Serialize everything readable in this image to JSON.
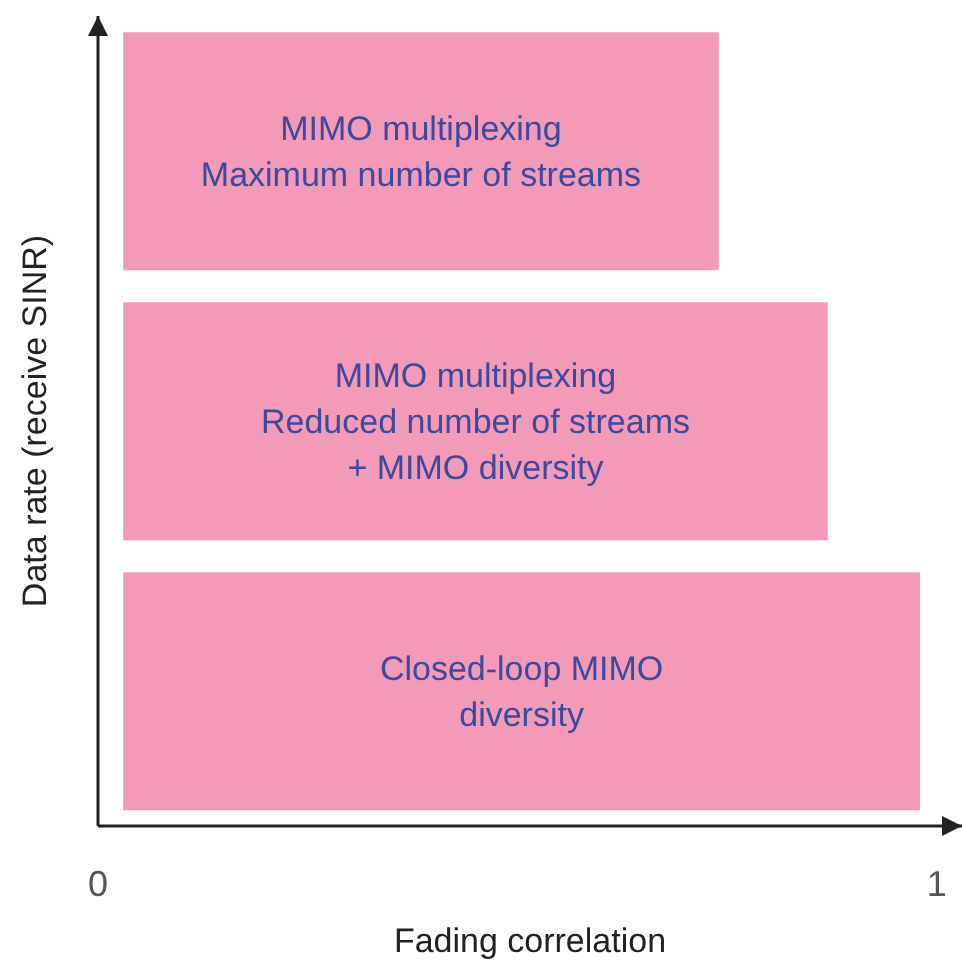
{
  "chart_data": {
    "type": "bar",
    "orientation": "horizontal",
    "relative": false,
    "categories": [
      "MIMO multiplexing\nMaximum number of streams",
      "MIMO multiplexing\nReduced number of streams\n+ MIMO diversity",
      "Closed-loop MIMO\ndiversity"
    ],
    "base": [
      0.03,
      0.03,
      0.03
    ],
    "values": [
      0.71,
      0.84,
      0.95
    ],
    "color": "#f39ab9",
    "xlim": [
      0,
      1.03
    ],
    "xticks": [
      0,
      1
    ],
    "xlabel": "Fading correlation",
    "ylabel": "Data rate (receive SINR)"
  }
}
